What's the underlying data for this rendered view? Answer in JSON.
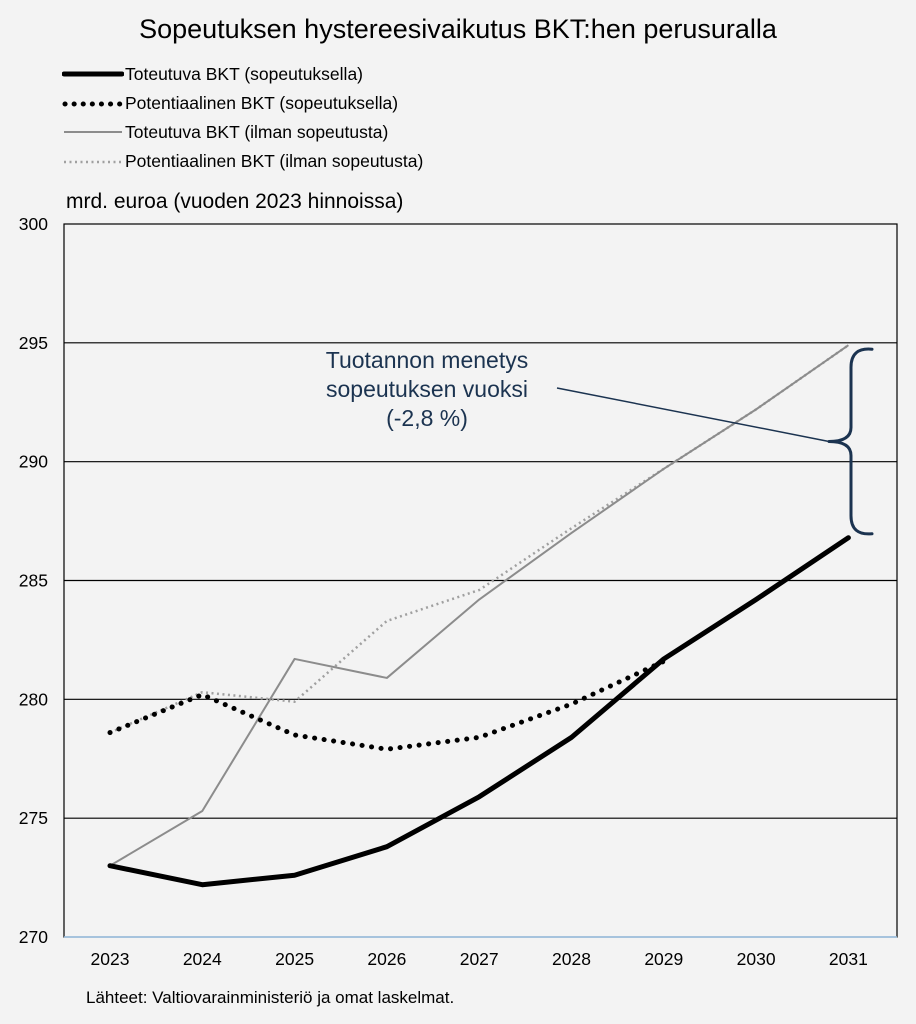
{
  "title": "Sopeutuksen hystereesivaikutus BKT:hen perusuralla",
  "unit_label": "mrd. euroa (vuoden 2023 hinnoissa)",
  "source": "Lähteet: Valtiovarainministeriö ja omat laskelmat.",
  "annotation": {
    "lines": [
      "Tuotannon menetys",
      "sopeutuksen vuoksi",
      "(-2,8 %)"
    ],
    "color": "#1b3350"
  },
  "chart_data": {
    "type": "line",
    "title": "Sopeutuksen hystereesivaikutus BKT:hen perusuralla",
    "ylabel": "mrd. euroa (vuoden 2023 hinnoissa)",
    "xlabel": "",
    "x": [
      "2023",
      "2024",
      "2025",
      "2026",
      "2027",
      "2028",
      "2029",
      "2030",
      "2031"
    ],
    "ylim": [
      270,
      300
    ],
    "yticks": [
      270,
      275,
      280,
      285,
      290,
      295,
      300
    ],
    "grid": "horizontal",
    "legend_position": "top-left",
    "series": [
      {
        "name": "Toteutuva BKT (sopeutuksella)",
        "style": "solid-thick",
        "color": "#000000",
        "values": [
          273.0,
          272.2,
          272.6,
          273.8,
          275.9,
          278.4,
          281.7,
          284.2,
          286.8
        ]
      },
      {
        "name": "Potentiaalinen BKT (sopeutuksella)",
        "style": "dotted-thick",
        "color": "#000000",
        "values": [
          278.6,
          280.2,
          278.5,
          277.9,
          278.4,
          279.8,
          281.6,
          null,
          null
        ]
      },
      {
        "name": "Toteutuva BKT (ilman sopeutusta)",
        "style": "solid-thin",
        "color": "#8c8c8c",
        "values": [
          273.0,
          275.3,
          281.7,
          280.9,
          284.2,
          287.0,
          289.7,
          292.2,
          294.9
        ]
      },
      {
        "name": "Potentiaalinen BKT (ilman sopeutusta)",
        "style": "dotted-thin",
        "color": "#a0a0a0",
        "values": [
          278.6,
          280.3,
          279.9,
          283.3,
          284.6,
          287.2,
          289.7,
          292.2,
          294.9
        ]
      }
    ]
  }
}
